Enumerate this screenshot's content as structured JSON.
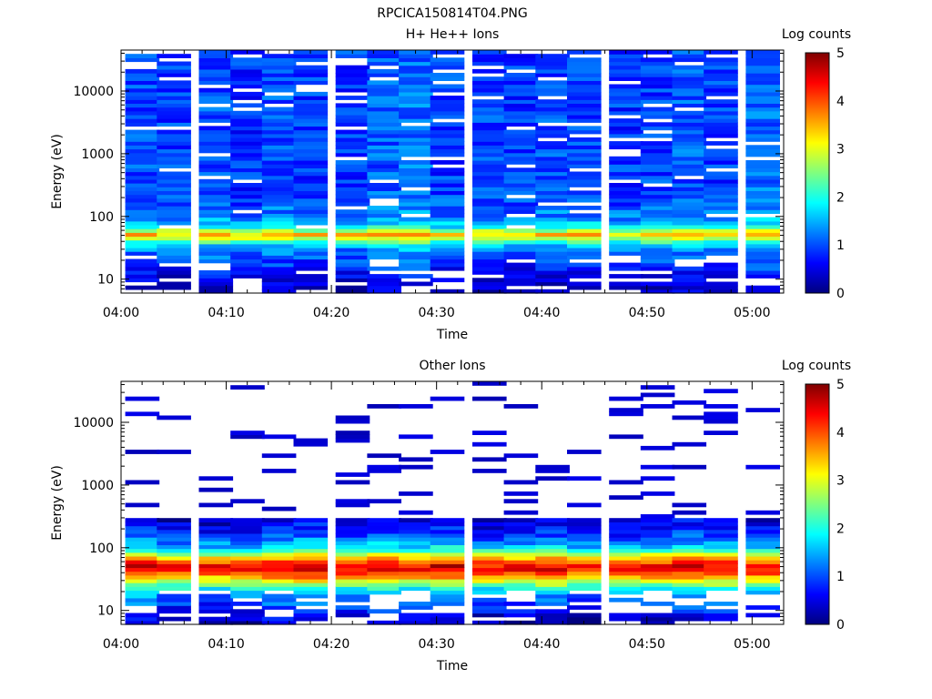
{
  "figure_title": "RPCICA150814T04.PNG",
  "colormap": [
    "#00007f",
    "#0000ff",
    "#007fff",
    "#00ffff",
    "#7fff7f",
    "#ffff00",
    "#ff7f00",
    "#ff0000",
    "#7f0000"
  ],
  "chart_data": [
    {
      "type": "heatmap",
      "title": "H+ He++ Ions",
      "xlabel": "Time",
      "ylabel": "Energy (eV)",
      "colorbar_label": "Log counts",
      "colorbar_ticks": [
        "0",
        "1",
        "2",
        "3",
        "4",
        "5"
      ],
      "zlim": [
        0,
        5
      ],
      "yscale": "log",
      "ylim": [
        6,
        45000
      ],
      "y_ticks": [
        {
          "value": 10,
          "label": "10"
        },
        {
          "value": 100,
          "label": "100"
        },
        {
          "value": 1000,
          "label": "1000"
        },
        {
          "value": 10000,
          "label": "10000"
        }
      ],
      "xlim_minutes": [
        0,
        63
      ],
      "x_ticks": [
        {
          "value": 0,
          "label": "04:00"
        },
        {
          "value": 10,
          "label": "04:10"
        },
        {
          "value": 20,
          "label": "04:20"
        },
        {
          "value": 30,
          "label": "04:30"
        },
        {
          "value": 40,
          "label": "04:40"
        },
        {
          "value": 50,
          "label": "04:50"
        },
        {
          "value": 60,
          "label": "05:00"
        }
      ],
      "time_bins": [
        "04:02",
        "04:05",
        "04:09",
        "04:12",
        "04:15",
        "04:18",
        "04:22",
        "04:25",
        "04:28",
        "04:31",
        "04:35",
        "04:38",
        "04:41",
        "04:44",
        "04:48",
        "04:51",
        "04:54",
        "04:57",
        "05:01"
      ],
      "profile_energy_ev": [
        6,
        8,
        10,
        13,
        17,
        22,
        28,
        35,
        42,
        50,
        57,
        70,
        100,
        160,
        300,
        600,
        1000,
        2000,
        4000,
        8000,
        15000,
        30000,
        45000
      ],
      "profile_log_counts": [
        0.3,
        0.4,
        0.5,
        0.7,
        0.9,
        1.1,
        1.2,
        1.6,
        2.5,
        3.6,
        3.0,
        1.8,
        1.3,
        1.1,
        1.0,
        1.0,
        1.0,
        1.0,
        1.0,
        1.0,
        1.0,
        1.0,
        1.0
      ]
    },
    {
      "type": "heatmap",
      "title": "Other Ions",
      "xlabel": "Time",
      "ylabel": "Energy (eV)",
      "colorbar_label": "Log counts",
      "colorbar_ticks": [
        "0",
        "1",
        "2",
        "3",
        "4",
        "5"
      ],
      "zlim": [
        0,
        5
      ],
      "yscale": "log",
      "ylim": [
        6,
        45000
      ],
      "y_ticks": [
        {
          "value": 10,
          "label": "10"
        },
        {
          "value": 100,
          "label": "100"
        },
        {
          "value": 1000,
          "label": "1000"
        },
        {
          "value": 10000,
          "label": "10000"
        }
      ],
      "xlim_minutes": [
        0,
        63
      ],
      "x_ticks": [
        {
          "value": 0,
          "label": "04:00"
        },
        {
          "value": 10,
          "label": "04:10"
        },
        {
          "value": 20,
          "label": "04:20"
        },
        {
          "value": 30,
          "label": "04:30"
        },
        {
          "value": 40,
          "label": "04:40"
        },
        {
          "value": 50,
          "label": "04:50"
        },
        {
          "value": 60,
          "label": "05:00"
        }
      ],
      "time_bins": [
        "04:02",
        "04:05",
        "04:09",
        "04:12",
        "04:15",
        "04:18",
        "04:22",
        "04:25",
        "04:28",
        "04:31",
        "04:35",
        "04:38",
        "04:41",
        "04:44",
        "04:48",
        "04:51",
        "04:54",
        "04:57",
        "05:01"
      ],
      "profile_energy_ev": [
        6,
        8,
        10,
        13,
        17,
        22,
        28,
        35,
        42,
        50,
        60,
        80,
        100,
        150,
        230,
        400,
        1000,
        3000,
        10000,
        45000
      ],
      "profile_log_counts": [
        0.2,
        0.5,
        0.8,
        1.0,
        1.3,
        1.9,
        2.8,
        3.6,
        4.3,
        4.6,
        4.0,
        2.8,
        1.8,
        1.0,
        0.6,
        0.3,
        0.2,
        0.1,
        0.1,
        0.0
      ]
    }
  ]
}
